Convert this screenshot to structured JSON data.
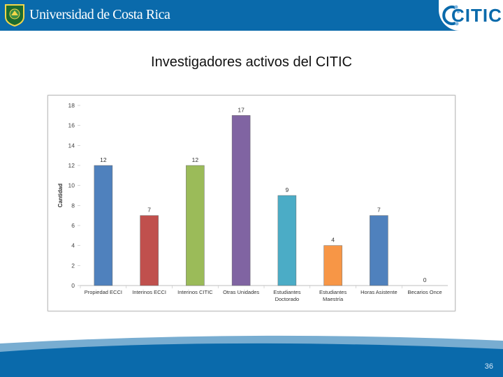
{
  "header": {
    "org_name": "Universidad de Costa Rica",
    "logo_text": "CITIC"
  },
  "slide": {
    "title": "Investigadores activos del CITIC",
    "page_number": "36"
  },
  "colors": {
    "header_blue": "#0a6aab",
    "footer_blue": "#0a6aab"
  },
  "chart_data": {
    "type": "bar",
    "categories": [
      [
        "Propiedad ECCI"
      ],
      [
        "Interinos ECCI"
      ],
      [
        "Interinos CITIC"
      ],
      [
        "Otras Unidades"
      ],
      [
        "Estudiantes",
        "Doctorado"
      ],
      [
        "Estudiantes",
        "Maestría"
      ],
      [
        "Horas Asistente"
      ],
      [
        "Becarios Once"
      ]
    ],
    "values": [
      12,
      7,
      12,
      17,
      9,
      4,
      7,
      0
    ],
    "value_labels": [
      "12",
      "7",
      "12",
      "17",
      "9",
      "4",
      "7",
      "0"
    ],
    "colors": [
      "#4f81bd",
      "#c0504d",
      "#9bbb59",
      "#8064a2",
      "#4bacc6",
      "#f79646",
      "#4f81bd",
      "#c0504d"
    ],
    "ylabel": "Cantidad",
    "ylim": [
      0,
      18
    ],
    "yticks": [
      "0",
      "2",
      "4",
      "6",
      "8",
      "10",
      "12",
      "14",
      "16",
      "18"
    ],
    "grid": false,
    "legend": "none"
  }
}
